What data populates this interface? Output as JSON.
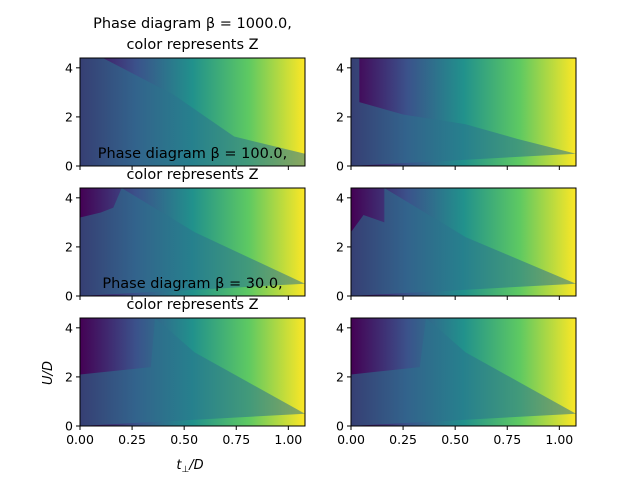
{
  "chart_data": {
    "type": "heatmap",
    "xlim": [
      0,
      1.08
    ],
    "ylim": [
      0,
      4.4
    ],
    "xticks": [
      0.0,
      0.25,
      0.5,
      0.75,
      1.0
    ],
    "xtick_labels": [
      "0.00",
      "0.25",
      "0.50",
      "0.75",
      "1.00"
    ],
    "yticks": [
      0,
      2,
      4
    ],
    "ytick_labels": [
      "0",
      "2",
      "4"
    ],
    "colormap": [
      "#440154",
      "#3b528b",
      "#21918c",
      "#5ec962",
      "#fde725"
    ],
    "color_meaning": "Z",
    "grid": false,
    "rows": [
      {
        "beta": 1000.0,
        "title_line1": "Phase diagram β = 1000.0,",
        "title_line2": "color represents Z",
        "panels": [
          {
            "column": "left",
            "region": [
              [
                0.04,
                4.4
              ],
              [
                0.11,
                4.4
              ],
              [
                0.45,
                2.9
              ],
              [
                0.74,
                1.2
              ],
              [
                1.08,
                0.5
              ],
              [
                1.08,
                0.0
              ]
            ]
          },
          {
            "column": "right",
            "region": [
              [
                0.04,
                4.4
              ],
              [
                0.04,
                2.6
              ],
              [
                0.25,
                2.1
              ],
              [
                0.55,
                1.7
              ],
              [
                0.8,
                1.1
              ],
              [
                1.08,
                0.5
              ]
            ]
          }
        ]
      },
      {
        "beta": 100.0,
        "title_line1": "Phase diagram β = 100.0,",
        "title_line2": "color represents Z",
        "panels": [
          {
            "column": "left",
            "region": [
              [
                0.0,
                3.2
              ],
              [
                0.1,
                3.4
              ],
              [
                0.16,
                3.6
              ],
              [
                0.2,
                4.4
              ],
              [
                0.55,
                2.6
              ],
              [
                1.08,
                0.5
              ]
            ]
          },
          {
            "column": "right",
            "region": [
              [
                0.0,
                2.6
              ],
              [
                0.06,
                3.3
              ],
              [
                0.16,
                3.0
              ],
              [
                0.16,
                4.4
              ],
              [
                0.55,
                2.4
              ],
              [
                1.08,
                0.5
              ]
            ]
          }
        ]
      },
      {
        "beta": 30.0,
        "title_line1": "Phase diagram β = 30.0,",
        "title_line2": "color represents Z",
        "panels": [
          {
            "column": "left",
            "region": [
              [
                0.0,
                2.1
              ],
              [
                0.34,
                2.4
              ],
              [
                0.36,
                4.4
              ],
              [
                0.55,
                3.0
              ],
              [
                1.08,
                0.5
              ]
            ]
          },
          {
            "column": "right",
            "region": [
              [
                0.0,
                2.1
              ],
              [
                0.33,
                2.4
              ],
              [
                0.36,
                4.4
              ],
              [
                0.55,
                3.0
              ],
              [
                1.08,
                0.5
              ]
            ]
          }
        ]
      }
    ],
    "xlabel": "t⊥/D",
    "ylabel": "U/D"
  },
  "labels": {
    "xlabel_main": "t",
    "xlabel_sub": "⊥",
    "xlabel_rest": "/D",
    "ylabel": "U/D"
  }
}
